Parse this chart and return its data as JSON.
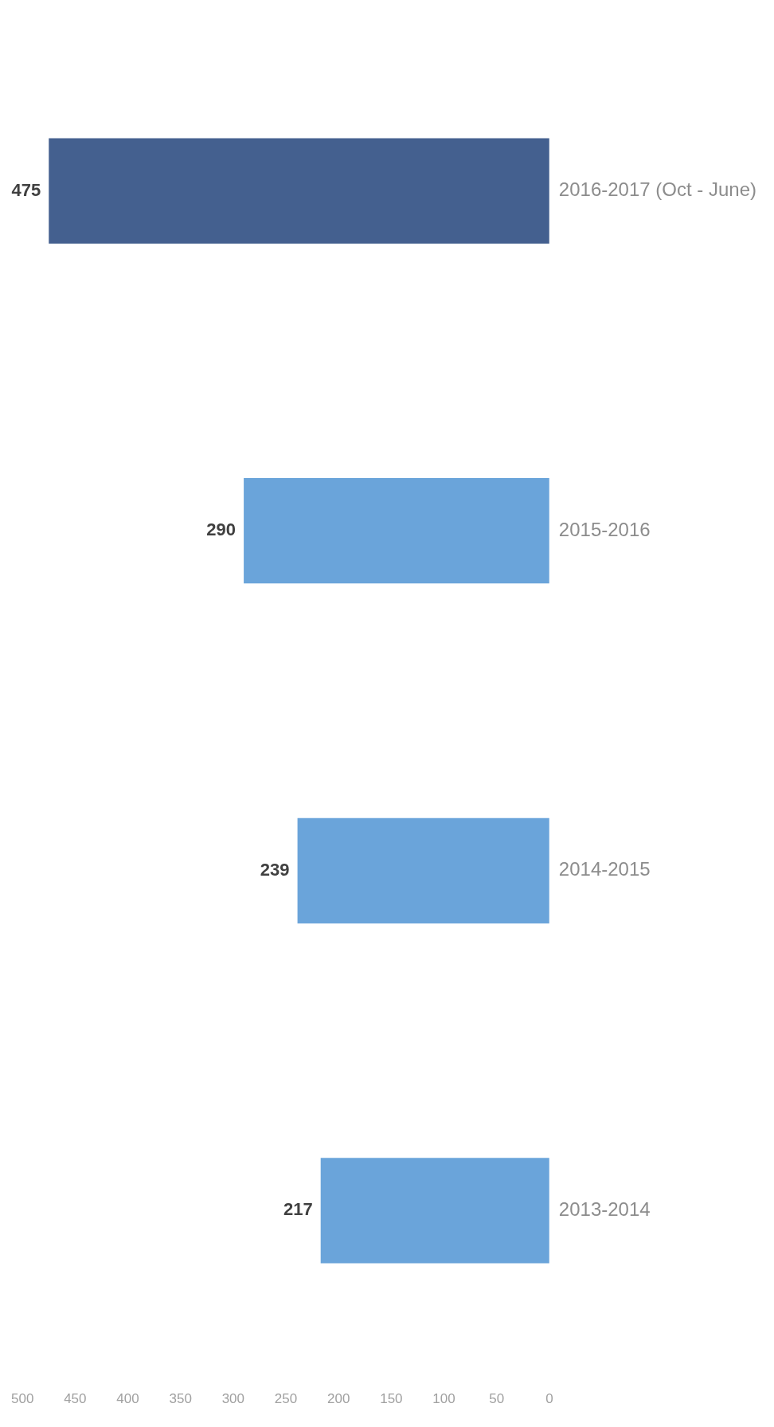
{
  "chart_data": {
    "type": "bar",
    "orientation": "horizontal",
    "categories": [
      "2016-2017 (Oct - June)",
      "2015-2016",
      "2014-2015",
      "2013-2014"
    ],
    "values": [
      475,
      290,
      239,
      217
    ],
    "colors": [
      "#44608f",
      "#6aa4da",
      "#6aa4da",
      "#6aa4da"
    ],
    "xlim": [
      500,
      0
    ],
    "xticks": [
      500,
      450,
      400,
      350,
      300,
      250,
      200,
      150,
      100,
      50,
      0
    ],
    "grid": false,
    "legend": false,
    "data_labels": true
  }
}
